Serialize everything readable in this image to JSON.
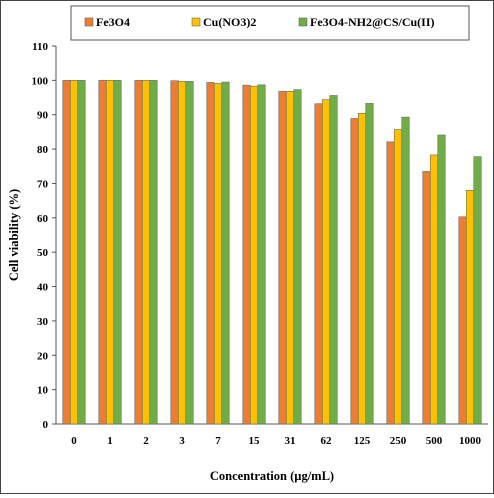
{
  "chart_data": {
    "type": "bar",
    "xlabel": "Concentration (µg/mL)",
    "ylabel": "Cell viability (%)",
    "ylim": [
      0,
      110
    ],
    "ytick_step": 10,
    "grid": false,
    "legend_position": "top",
    "categories": [
      "0",
      "1",
      "2",
      "3",
      "7",
      "15",
      "31",
      "62",
      "125",
      "250",
      "500",
      "1000"
    ],
    "series": [
      {
        "name": "Fe3O4",
        "color": "#ED7D31",
        "values": [
          100,
          100,
          100,
          99.9,
          99.4,
          98.6,
          96.8,
          93.2,
          88.9,
          82.1,
          73.5,
          60.3
        ]
      },
      {
        "name": "Cu(NO3)2",
        "color": "#FFC000",
        "values": [
          100,
          100,
          100,
          99.7,
          99.1,
          98.3,
          96.8,
          94.4,
          90.4,
          85.7,
          78.3,
          68.0
        ]
      },
      {
        "name": "Fe3O4-NH2@CS/Cu(II)",
        "color": "#70AD47",
        "values": [
          100,
          100,
          100,
          99.7,
          99.5,
          98.7,
          97.3,
          95.6,
          93.3,
          89.3,
          84.1,
          77.8
        ]
      }
    ]
  }
}
